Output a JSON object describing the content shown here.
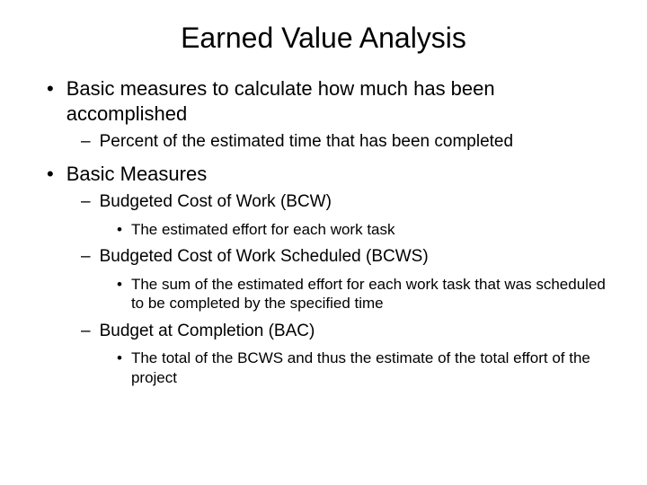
{
  "slide": {
    "title": "Earned Value Analysis",
    "background_color": "#ffffff",
    "text_color": "#000000",
    "font_family": "Arial",
    "title_fontsize": 32,
    "l1_fontsize": 22,
    "l2_fontsize": 19,
    "l3_fontsize": 17,
    "bullet_l1_marker": "•",
    "bullet_l2_marker": "–",
    "bullet_l3_marker": "•",
    "items": [
      {
        "text": "Basic measures to calculate how much has been accomplished",
        "sub": [
          {
            "text": "Percent of the estimated time that has been completed",
            "sub": []
          }
        ]
      },
      {
        "text": "Basic Measures",
        "sub": [
          {
            "text": "Budgeted Cost of Work (BCW)",
            "sub": [
              {
                "text": "The estimated effort for each work task"
              }
            ]
          },
          {
            "text": "Budgeted Cost of Work Scheduled (BCWS)",
            "sub": [
              {
                "text": "The sum of the estimated effort for each work task that was scheduled to be completed by the specified time"
              }
            ]
          },
          {
            "text": "Budget at Completion (BAC)",
            "sub": [
              {
                "text": "The total of the BCWS and thus the estimate of the total effort of the project"
              }
            ]
          }
        ]
      }
    ]
  }
}
